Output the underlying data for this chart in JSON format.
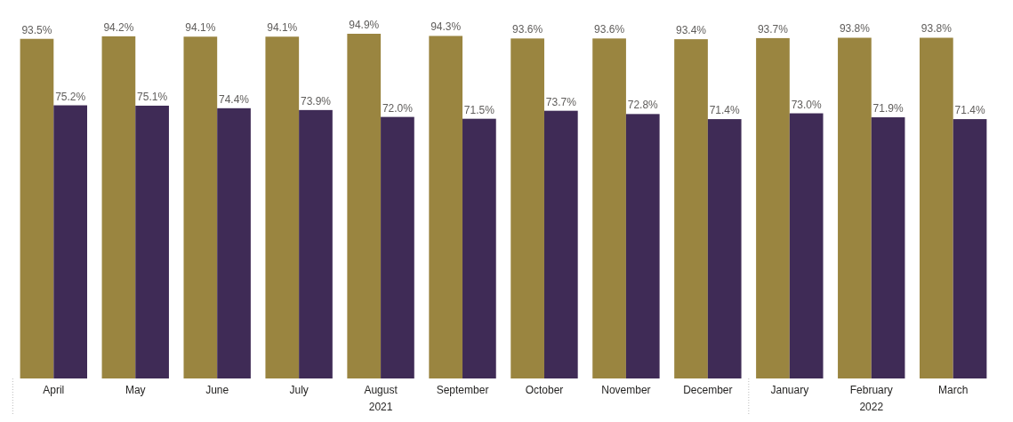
{
  "chart_data": {
    "type": "bar",
    "categories": [
      "April",
      "May",
      "June",
      "July",
      "August",
      "September",
      "October",
      "November",
      "December",
      "January",
      "February",
      "March"
    ],
    "series": [
      {
        "color": "#9a8540",
        "values": [
          93.5,
          94.2,
          94.1,
          94.1,
          94.9,
          94.3,
          93.6,
          93.6,
          93.4,
          93.7,
          93.8,
          93.8
        ],
        "value_labels": [
          "93.5%",
          "94.2%",
          "94.1%",
          "94.1%",
          "94.9%",
          "94.3%",
          "93.6%",
          "93.6%",
          "93.4%",
          "93.7%",
          "93.8%",
          "93.8%"
        ]
      },
      {
        "color": "#3f2b56",
        "values": [
          75.2,
          75.1,
          74.4,
          73.9,
          72.0,
          71.5,
          73.7,
          72.8,
          71.4,
          73.0,
          71.9,
          71.4
        ],
        "value_labels": [
          "75.2%",
          "75.1%",
          "74.4%",
          "73.9%",
          "72.0%",
          "71.5%",
          "73.7%",
          "72.8%",
          "71.4%",
          "73.0%",
          "71.9%",
          "71.4%"
        ]
      }
    ],
    "grid": false,
    "annotations": [
      "2021",
      "2022"
    ]
  }
}
